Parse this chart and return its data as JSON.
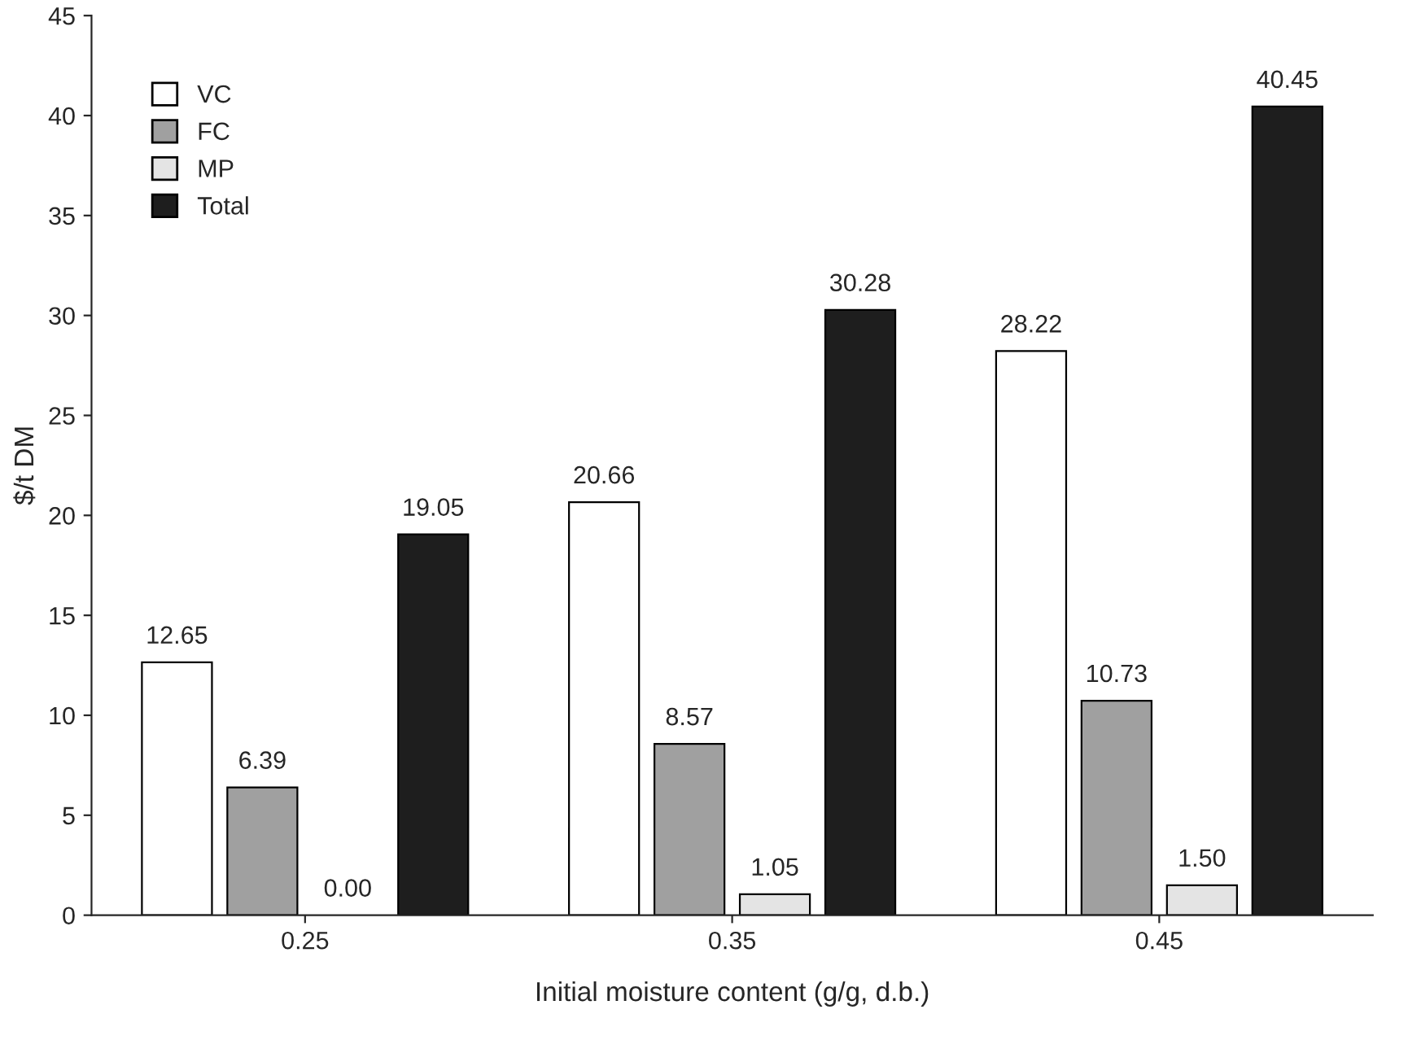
{
  "chart_data": {
    "type": "bar",
    "xlabel": "Initial moisture content (g/g, d.b.)",
    "ylabel": "$/t DM",
    "categories": [
      "0.25",
      "0.35",
      "0.45"
    ],
    "series": [
      {
        "name": "VC",
        "color": "#ffffff",
        "values": [
          12.65,
          20.66,
          28.22
        ]
      },
      {
        "name": "FC",
        "color": "#a0a0a0",
        "values": [
          6.39,
          8.57,
          10.73
        ]
      },
      {
        "name": "MP",
        "color": "#e4e4e4",
        "values": [
          0.0,
          1.05,
          1.5
        ]
      },
      {
        "name": "Total",
        "color": "#1e1e1e",
        "values": [
          19.05,
          30.28,
          40.45
        ]
      }
    ],
    "value_labels": [
      [
        "12.65",
        "20.66",
        "28.22"
      ],
      [
        "6.39",
        "8.57",
        "10.73"
      ],
      [
        "0.00",
        "1.05",
        "1.50"
      ],
      [
        "19.05",
        "30.28",
        "40.45"
      ]
    ],
    "ylim": [
      0,
      45
    ],
    "yticks": [
      0,
      5,
      10,
      15,
      20,
      25,
      30,
      35,
      40,
      45
    ],
    "grid": false,
    "legend": "top left"
  }
}
